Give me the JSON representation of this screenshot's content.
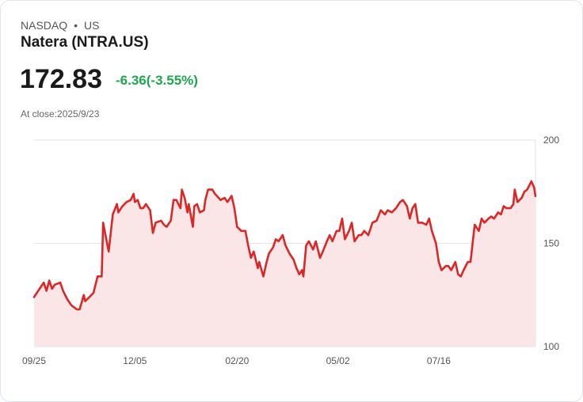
{
  "header": {
    "exchange": "NASDAQ",
    "separator": "•",
    "region": "US",
    "title": "Natera (NTRA.US)",
    "price": "172.83",
    "change": "-6.36(-3.55%)",
    "close_label": "At close:2025/9/23"
  },
  "colors": {
    "line": "#dd2626",
    "fill": "#fae6e6",
    "change": "#1ea64d",
    "grid": "#e3e3e3"
  },
  "chart_data": {
    "type": "area",
    "title": "Natera (NTRA.US)",
    "xlabel": "",
    "ylabel": "",
    "ylim": [
      100,
      200
    ],
    "xlim": [
      0,
      363
    ],
    "grid": true,
    "y_ticks": [
      {
        "value": 100,
        "label": "100"
      },
      {
        "value": 150,
        "label": "150"
      },
      {
        "value": 200,
        "label": "200"
      }
    ],
    "x_ticks": [
      {
        "value": 0,
        "label": "09/25"
      },
      {
        "value": 73,
        "label": "12/05"
      },
      {
        "value": 147,
        "label": "02/20"
      },
      {
        "value": 220,
        "label": "05/02"
      },
      {
        "value": 293,
        "label": "07/16"
      }
    ],
    "series": [
      {
        "name": "NTRA.US",
        "x": [
          0,
          3,
          7,
          9,
          11,
          13,
          15,
          19,
          21,
          24,
          27,
          31,
          33,
          36,
          37,
          40,
          43,
          46,
          49,
          50,
          52,
          54,
          57,
          60,
          61,
          64,
          67,
          70,
          72,
          73,
          75,
          77,
          79,
          81,
          84,
          86,
          88,
          92,
          94,
          96,
          99,
          101,
          103,
          106,
          107,
          109,
          111,
          112,
          115,
          116,
          118,
          120,
          123,
          124,
          126,
          129,
          131,
          135,
          138,
          140,
          143,
          145,
          147,
          150,
          153,
          155,
          157,
          159,
          162,
          163,
          166,
          168,
          170,
          173,
          175,
          177,
          180,
          182,
          185,
          188,
          190,
          192,
          194,
          195,
          197,
          199,
          202,
          204,
          207,
          209,
          212,
          214,
          216,
          219,
          221,
          223,
          225,
          228,
          230,
          232,
          235,
          237,
          239,
          242,
          245,
          248,
          251,
          254,
          256,
          259,
          262,
          265,
          267,
          270,
          272,
          274,
          276,
          278,
          281,
          284,
          286,
          288,
          291,
          293,
          295,
          298,
          300,
          302,
          305,
          307,
          309,
          311,
          314,
          316,
          318,
          319,
          322,
          324,
          326,
          329,
          331,
          333,
          336,
          338,
          340,
          342,
          345,
          347,
          348,
          350,
          353,
          355,
          357,
          360,
          362,
          363
        ],
        "values": [
          124,
          127,
          131,
          127,
          132,
          128,
          130,
          131,
          127,
          123,
          120,
          118,
          118,
          125,
          122,
          124,
          126,
          134,
          134,
          160,
          153,
          146,
          164,
          169,
          165,
          168,
          170,
          171,
          174,
          170,
          171,
          167,
          167,
          169,
          166,
          155,
          160,
          161,
          159,
          158,
          161,
          171,
          171,
          167,
          176,
          172,
          165,
          169,
          158,
          168,
          169,
          165,
          166,
          171,
          176,
          176,
          174,
          171,
          172,
          170,
          173,
          167,
          158,
          156,
          156,
          149,
          143,
          146,
          138,
          141,
          134,
          140,
          145,
          148,
          152,
          151,
          154,
          149,
          145,
          142,
          138,
          135,
          137,
          134,
          149,
          151,
          147,
          151,
          143,
          146,
          151,
          154,
          151,
          156,
          156,
          162,
          152,
          156,
          160,
          151,
          154,
          154,
          156,
          154,
          160,
          161,
          166,
          164,
          166,
          165,
          167,
          170,
          171,
          168,
          162,
          167,
          169,
          160,
          160,
          159,
          162,
          156,
          150,
          141,
          137,
          139,
          139,
          137,
          141,
          135,
          134,
          137,
          141,
          141,
          153,
          159,
          156,
          162,
          160,
          162,
          163,
          162,
          165,
          164,
          168,
          167,
          167,
          169,
          176,
          170,
          172,
          175,
          176,
          180,
          177,
          172.83
        ]
      }
    ]
  }
}
